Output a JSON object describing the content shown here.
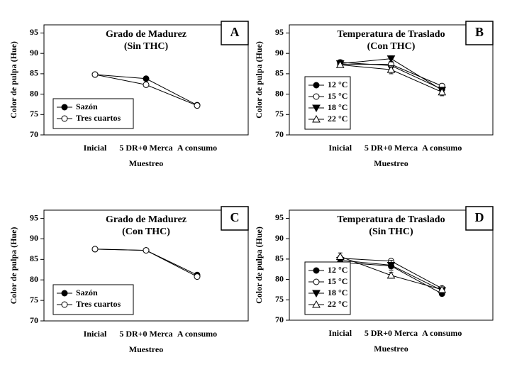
{
  "chart_data": [
    {
      "type": "line",
      "title": "Grado de Madurez",
      "subtitle": "(Sin THC)",
      "panel_label": "A",
      "xlabel": "Muestreo",
      "ylabel": "Color de pulpa (Hue)",
      "categories": [
        "Inicial",
        "5 DR+0 Merca",
        "A consumo"
      ],
      "ylim": [
        70,
        97
      ],
      "yticks": [
        70,
        75,
        80,
        85,
        90,
        95
      ],
      "legend": "lower left",
      "series": [
        {
          "name": "Sazón",
          "color": "#000000",
          "marker": "circle-filled",
          "values": [
            84.8,
            83.8,
            77.3
          ],
          "errors": [
            0.5,
            0.5,
            0.4
          ]
        },
        {
          "name": "Tres cuartos",
          "color": "#000000",
          "marker": "circle-open",
          "values": [
            84.8,
            82.3,
            77.2
          ],
          "errors": [
            0.5,
            0.5,
            0.4
          ]
        }
      ]
    },
    {
      "type": "line",
      "title": "Temperatura de Traslado",
      "subtitle": "(Con THC)",
      "panel_label": "B",
      "xlabel": "Muestreo",
      "ylabel": "Color de pulpa (Hue)",
      "categories": [
        "Inicial",
        "5 DR+0 Merca",
        "A consumo"
      ],
      "ylim": [
        70,
        97
      ],
      "yticks": [
        70,
        75,
        80,
        85,
        90,
        95
      ],
      "legend": "lower left",
      "series": [
        {
          "name": "12 °C",
          "color": "#000000",
          "marker": "circle-filled",
          "values": [
            87.8,
            87.0,
            81.2
          ],
          "errors": [
            0.6,
            0.6,
            0.6
          ]
        },
        {
          "name": "15 °C",
          "color": "#000000",
          "marker": "circle-open",
          "values": [
            87.3,
            87.3,
            82.0
          ],
          "errors": [
            0.5,
            0.6,
            0.5
          ]
        },
        {
          "name": "18 °C",
          "color": "#000000",
          "marker": "triangle-down-filled",
          "values": [
            87.5,
            88.7,
            81.0
          ],
          "errors": [
            0.6,
            0.7,
            0.6
          ]
        },
        {
          "name": "22 °C",
          "color": "#000000",
          "marker": "triangle-up-open",
          "values": [
            87.2,
            86.0,
            80.5
          ],
          "errors": [
            0.6,
            1.0,
            0.9
          ]
        }
      ]
    },
    {
      "type": "line",
      "title": "Grado de Madurez",
      "subtitle": "(Con THC)",
      "panel_label": "C",
      "xlabel": "Muestreo",
      "ylabel": "Color de pulpa (Hue)",
      "categories": [
        "Inicial",
        "5 DR+0 Merca",
        "A consumo"
      ],
      "ylim": [
        70,
        97
      ],
      "yticks": [
        70,
        75,
        80,
        85,
        90,
        95
      ],
      "legend": "lower left",
      "series": [
        {
          "name": "Sazón",
          "color": "#000000",
          "marker": "circle-filled",
          "values": [
            87.5,
            87.2,
            81.2
          ],
          "errors": [
            0.4,
            0.4,
            0.4
          ]
        },
        {
          "name": "Tres cuartos",
          "color": "#000000",
          "marker": "circle-open",
          "values": [
            87.5,
            87.2,
            80.8
          ],
          "errors": [
            0.4,
            0.5,
            0.4
          ]
        }
      ]
    },
    {
      "type": "line",
      "title": "Temperatura de Traslado",
      "subtitle": "(Sin THC)",
      "panel_label": "D",
      "xlabel": "Muestreo",
      "ylabel": "Color de pulpa (Hue)",
      "categories": [
        "Inicial",
        "5 DR+0 Merca",
        "A consumo"
      ],
      "ylim": [
        70,
        97
      ],
      "yticks": [
        70,
        75,
        80,
        85,
        90,
        95
      ],
      "legend": "lower left",
      "series": [
        {
          "name": "12 °C",
          "color": "#000000",
          "marker": "circle-filled",
          "values": [
            84.2,
            83.3,
            76.5
          ],
          "errors": [
            0.6,
            0.6,
            0.4
          ]
        },
        {
          "name": "15 °C",
          "color": "#000000",
          "marker": "circle-open",
          "values": [
            85.2,
            84.5,
            77.8
          ],
          "errors": [
            0.6,
            0.5,
            0.4
          ]
        },
        {
          "name": "18 °C",
          "color": "#000000",
          "marker": "triangle-down-filled",
          "values": [
            84.7,
            83.5,
            77.3
          ],
          "errors": [
            0.6,
            1.2,
            0.5
          ]
        },
        {
          "name": "22 °C",
          "color": "#000000",
          "marker": "triangle-up-open",
          "values": [
            85.6,
            81.0,
            77.5
          ],
          "errors": [
            0.9,
            0.7,
            0.5
          ]
        }
      ]
    }
  ]
}
